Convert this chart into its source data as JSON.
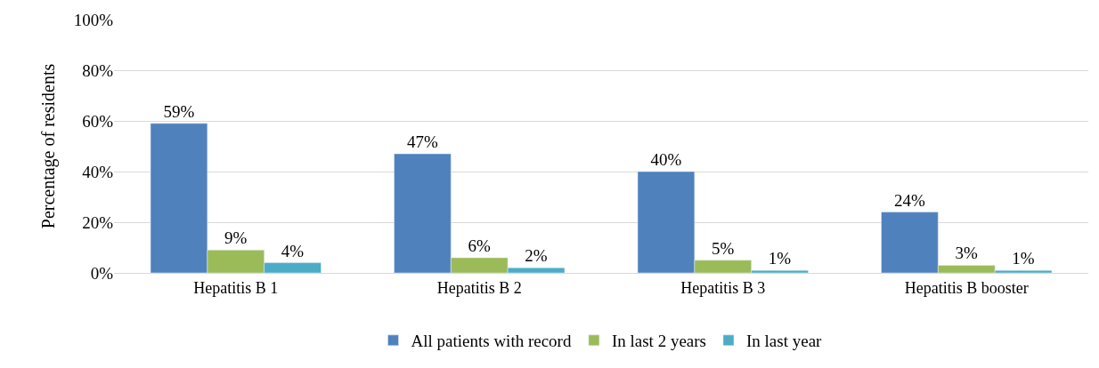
{
  "chart_data": {
    "type": "bar",
    "ylabel": "Percentage of residents",
    "categories": [
      "Hepatitis B 1",
      "Hepatitis B 2",
      "Hepatitis B 3",
      "Hepatitis B booster"
    ],
    "series": [
      {
        "name": "All patients with record",
        "color": "#4f81bd",
        "values": [
          59,
          47,
          40,
          24
        ],
        "value_labels": [
          "59%",
          "47%",
          "40%",
          "24%"
        ]
      },
      {
        "name": "In last 2 years",
        "color": "#9bbb59",
        "values": [
          9,
          6,
          5,
          3
        ],
        "value_labels": [
          "9%",
          "6%",
          "5%",
          "3%"
        ]
      },
      {
        "name": "In last year",
        "color": "#4bacc6",
        "values": [
          4,
          2,
          1,
          1
        ],
        "value_labels": [
          "4%",
          "2%",
          "1%",
          "1%"
        ]
      }
    ],
    "ylim": [
      0,
      100
    ],
    "yticks": [
      {
        "value": 0,
        "label": "0%"
      },
      {
        "value": 20,
        "label": "20%"
      },
      {
        "value": 40,
        "label": "40%"
      },
      {
        "value": 60,
        "label": "60%"
      },
      {
        "value": 80,
        "label": "80%"
      },
      {
        "value": 100,
        "label": "100%"
      }
    ],
    "grid": "y",
    "legend": "bottom"
  }
}
